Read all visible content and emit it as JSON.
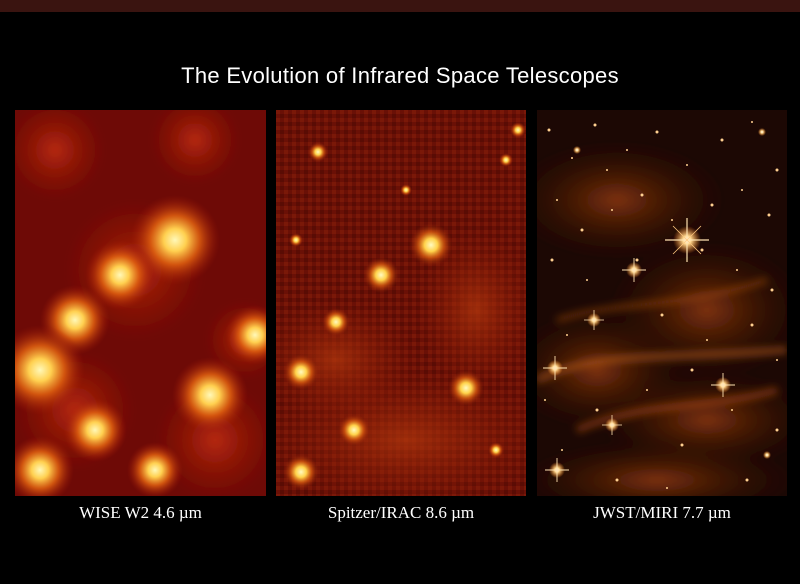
{
  "title": "The Evolution of Infrared Space Telescopes",
  "panels": [
    {
      "caption": "WISE W2 4.6 µm"
    },
    {
      "caption": "Spitzer/IRAC 8.6 µm"
    },
    {
      "caption": "JWST/MIRI 7.7 µm"
    }
  ],
  "colors": {
    "background": "#000000",
    "top_bar": "#3a1410",
    "wise_base": "#6e0a06",
    "spitzer_base": "#6a1006",
    "jwst_base": "#1c0804",
    "star_core": "#fff6b0",
    "star_glow": "#ff9a20"
  }
}
